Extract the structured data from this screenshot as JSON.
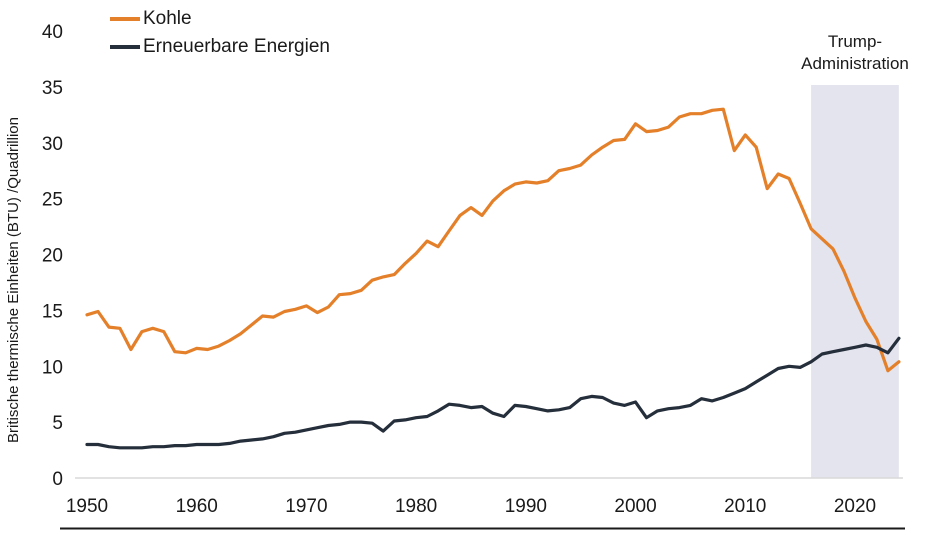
{
  "chart_data": {
    "type": "line",
    "title": "",
    "xlabel": "",
    "ylabel": "Britische thermische Einheiten (BTU) /Quadrillion",
    "x_start": 1950,
    "x_end": 2024,
    "xlim": [
      1950,
      2024
    ],
    "ylim": [
      0,
      40
    ],
    "x_ticks": [
      1950,
      1960,
      1970,
      1980,
      1990,
      2000,
      2010,
      2020
    ],
    "y_ticks": [
      0,
      5,
      10,
      15,
      20,
      25,
      30,
      35,
      40
    ],
    "grid": false,
    "legend_position": "top-left",
    "axis_color": "#d9d9d9",
    "text_color": "#1a1a1a",
    "series": [
      {
        "name": "Kohle",
        "color": "#e4802a",
        "values": [
          14.6,
          14.9,
          13.5,
          13.4,
          11.5,
          13.1,
          13.4,
          13.1,
          11.3,
          11.2,
          11.6,
          11.5,
          11.8,
          12.3,
          12.9,
          13.7,
          14.5,
          14.4,
          14.9,
          15.1,
          15.4,
          14.8,
          15.3,
          16.4,
          16.5,
          16.8,
          17.7,
          18.0,
          18.2,
          19.2,
          20.1,
          21.2,
          20.7,
          22.1,
          23.5,
          24.2,
          23.5,
          24.8,
          25.7,
          26.3,
          26.5,
          26.4,
          26.6,
          27.5,
          27.7,
          28.0,
          28.9,
          29.6,
          30.2,
          30.3,
          31.7,
          31.0,
          31.1,
          31.4,
          32.3,
          32.6,
          32.6,
          32.9,
          33.0,
          29.3,
          30.7,
          29.6,
          25.9,
          27.2,
          26.8,
          24.6,
          22.3,
          21.4,
          20.5,
          18.5,
          16.1,
          14.0,
          12.4,
          9.6,
          10.4
        ]
      },
      {
        "name": "Erneuerbare Energien",
        "color": "#252e3b",
        "values": [
          3.0,
          3.0,
          2.8,
          2.7,
          2.7,
          2.7,
          2.8,
          2.8,
          2.9,
          2.9,
          3.0,
          3.0,
          3.0,
          3.1,
          3.3,
          3.4,
          3.5,
          3.7,
          4.0,
          4.1,
          4.3,
          4.5,
          4.7,
          4.8,
          5.0,
          5.0,
          4.9,
          4.2,
          5.1,
          5.2,
          5.4,
          5.5,
          6.0,
          6.6,
          6.5,
          6.3,
          6.4,
          5.8,
          5.5,
          6.5,
          6.4,
          6.2,
          6.0,
          6.1,
          6.3,
          7.1,
          7.3,
          7.2,
          6.7,
          6.5,
          6.8,
          5.4,
          6.0,
          6.2,
          6.3,
          6.5,
          7.1,
          6.9,
          7.2,
          7.6,
          8.0,
          8.6,
          9.2,
          9.8,
          10.0,
          9.9,
          10.4,
          11.1,
          11.3,
          11.5,
          11.7,
          11.9,
          11.7,
          11.2,
          12.5
        ]
      }
    ],
    "annotation_band": {
      "label_line1": "Trump-",
      "label_line2": "Administration",
      "band_start": 2016,
      "band_end": 2024,
      "band_color": "#e3e4ee"
    }
  },
  "legend": {
    "items": [
      {
        "label": "Kohle",
        "color": "#e4802a"
      },
      {
        "label": "Erneuerbare Energien",
        "color": "#252e3b"
      }
    ]
  }
}
